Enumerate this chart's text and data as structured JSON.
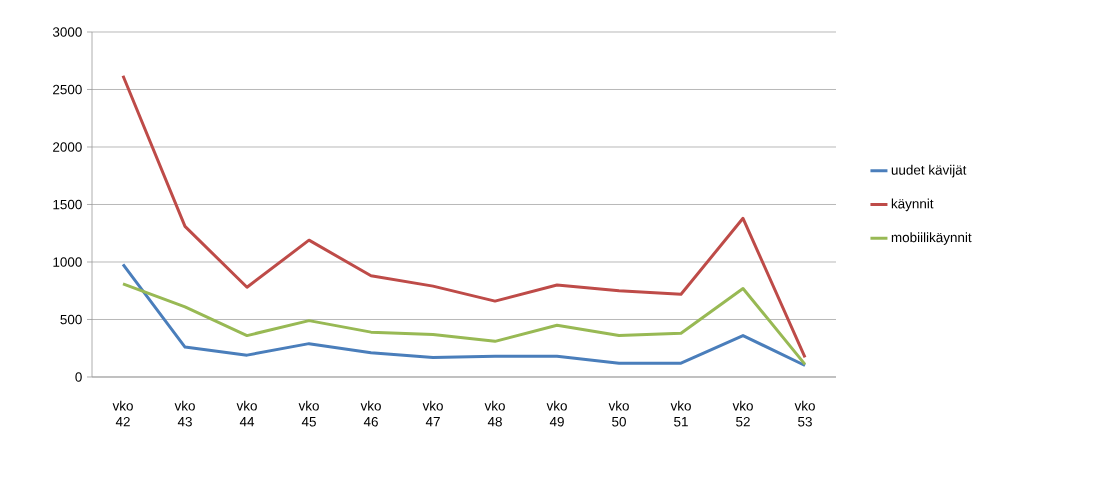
{
  "chart_data": {
    "type": "line",
    "categories": [
      "vko 42",
      "vko 43",
      "vko 44",
      "vko 45",
      "vko 46",
      "vko 47",
      "vko 48",
      "vko 49",
      "vko 50",
      "vko 51",
      "vko 52",
      "vko 53"
    ],
    "series": [
      {
        "name": "uudet kävijät",
        "color": "#4a7ebb",
        "values": [
          980,
          260,
          190,
          290,
          210,
          170,
          180,
          180,
          120,
          120,
          360,
          100
        ]
      },
      {
        "name": "käynnit",
        "color": "#be4b48",
        "values": [
          2620,
          1310,
          780,
          1190,
          880,
          790,
          660,
          800,
          750,
          720,
          1380,
          170
        ]
      },
      {
        "name": "mobiilikäynnit",
        "color": "#98b954",
        "values": [
          810,
          610,
          360,
          490,
          390,
          370,
          310,
          450,
          360,
          380,
          770,
          110
        ]
      }
    ],
    "ylim": [
      0,
      3000
    ],
    "yticks": [
      0,
      500,
      1000,
      1500,
      2000,
      2500,
      3000
    ],
    "grid": "y",
    "legend": "right",
    "marker": "none",
    "line_style": "solid"
  }
}
